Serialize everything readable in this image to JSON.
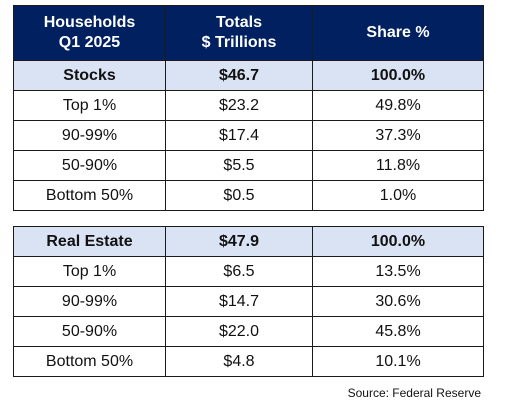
{
  "header": {
    "col1_line1": "Households",
    "col1_line2": "Q1 2025",
    "col2_line1": "Totals",
    "col2_line2": "$ Trillions",
    "col3": "Share %"
  },
  "stocks": {
    "summary": {
      "label": "Stocks",
      "total": "$46.7",
      "share": "100.0%"
    },
    "rows": [
      {
        "label": "Top 1%",
        "total": "$23.2",
        "share": "49.8%"
      },
      {
        "label": "90-99%",
        "total": "$17.4",
        "share": "37.3%"
      },
      {
        "label": "50-90%",
        "total": "$5.5",
        "share": "11.8%"
      },
      {
        "label": "Bottom 50%",
        "total": "$0.5",
        "share": "1.0%"
      }
    ]
  },
  "real_estate": {
    "summary": {
      "label": "Real Estate",
      "total": "$47.9",
      "share": "100.0%"
    },
    "rows": [
      {
        "label": "Top 1%",
        "total": "$6.5",
        "share": "13.5%"
      },
      {
        "label": "90-99%",
        "total": "$14.7",
        "share": "30.6%"
      },
      {
        "label": "50-90%",
        "total": "$22.0",
        "share": "45.8%"
      },
      {
        "label": "Bottom 50%",
        "total": "$4.8",
        "share": "10.1%"
      }
    ]
  },
  "source": "Source: Federal Reserve",
  "colors": {
    "header_bg": "#002060",
    "header_text": "#ffffff",
    "summary_bg": "#dae3f3"
  }
}
